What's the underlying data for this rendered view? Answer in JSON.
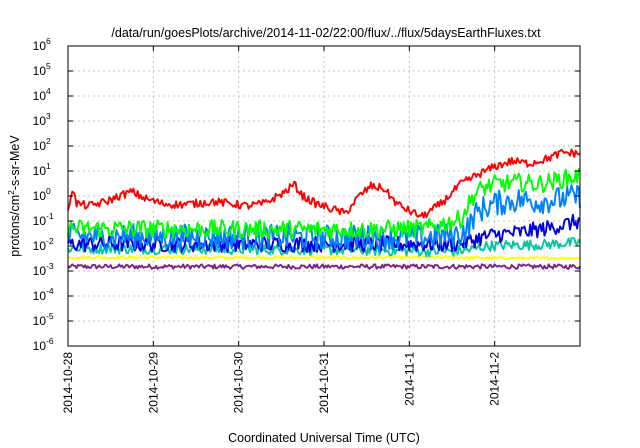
{
  "chart_data": {
    "type": "line",
    "title": "/data/run/goesPlots/archive/2014-11-02/22:00/flux/../flux/5daysEarthFluxes.txt",
    "xlabel": "Coordinated Universal Time (UTC)",
    "ylabel_parts": [
      "protons/cm",
      "2",
      "-s-sr-MeV"
    ],
    "yscale": "log",
    "ylim": [
      1e-06,
      1000000.0
    ],
    "xlim": [
      0,
      6
    ],
    "grid": true,
    "x_ticks": [
      {
        "x": 0,
        "label": "2014-10-28"
      },
      {
        "x": 1,
        "label": "2014-10-29"
      },
      {
        "x": 2,
        "label": "2014-10-30"
      },
      {
        "x": 3,
        "label": "2014-10-31"
      },
      {
        "x": 4,
        "label": "2014-11-1"
      },
      {
        "x": 5,
        "label": "2014-11-2"
      }
    ],
    "y_ticks": [
      {
        "exp": -6,
        "base": "10",
        "sup": "-6"
      },
      {
        "exp": -5,
        "base": "10",
        "sup": "-5"
      },
      {
        "exp": -4,
        "base": "10",
        "sup": "-4"
      },
      {
        "exp": -3,
        "base": "10",
        "sup": "-3"
      },
      {
        "exp": -2,
        "base": "10",
        "sup": "-2"
      },
      {
        "exp": -1,
        "base": "10",
        "sup": "-1"
      },
      {
        "exp": 0,
        "base": "10",
        "sup": "0"
      },
      {
        "exp": 1,
        "base": "10",
        "sup": "1"
      },
      {
        "exp": 2,
        "base": "10",
        "sup": "2"
      },
      {
        "exp": 3,
        "base": "10",
        "sup": "3"
      },
      {
        "exp": 4,
        "base": "10",
        "sup": "4"
      },
      {
        "exp": 5,
        "base": "10",
        "sup": "5"
      },
      {
        "exp": 6,
        "base": "10",
        "sup": "6"
      }
    ],
    "series": [
      {
        "color": "#ff0000",
        "noise": 0.07,
        "points": [
          [
            0,
            0.3
          ],
          [
            0.05,
            2.0
          ],
          [
            0.1,
            0.5
          ],
          [
            0.25,
            0.4
          ],
          [
            0.45,
            0.6
          ],
          [
            0.6,
            1.0
          ],
          [
            0.75,
            1.5
          ],
          [
            0.9,
            0.8
          ],
          [
            1.1,
            0.5
          ],
          [
            1.3,
            0.45
          ],
          [
            1.5,
            0.5
          ],
          [
            1.7,
            0.6
          ],
          [
            1.9,
            0.5
          ],
          [
            2.1,
            0.4
          ],
          [
            2.3,
            0.5
          ],
          [
            2.55,
            1.5
          ],
          [
            2.65,
            3.0
          ],
          [
            2.75,
            1.0
          ],
          [
            2.9,
            0.5
          ],
          [
            3.1,
            0.3
          ],
          [
            3.25,
            0.2
          ],
          [
            3.4,
            0.9
          ],
          [
            3.55,
            2.5
          ],
          [
            3.7,
            2.0
          ],
          [
            3.85,
            0.5
          ],
          [
            4.0,
            0.25
          ],
          [
            4.15,
            0.15
          ],
          [
            4.25,
            0.25
          ],
          [
            4.4,
            0.6
          ],
          [
            4.6,
            3.0
          ],
          [
            4.8,
            7.0
          ],
          [
            5.0,
            15
          ],
          [
            5.2,
            25
          ],
          [
            5.4,
            20
          ],
          [
            5.6,
            30
          ],
          [
            5.8,
            55
          ],
          [
            6.0,
            50
          ]
        ]
      },
      {
        "color": "#00ff00",
        "noise": 0.16,
        "points": [
          [
            0,
            0.05
          ],
          [
            3.5,
            0.045
          ],
          [
            4.2,
            0.05
          ],
          [
            4.6,
            0.12
          ],
          [
            4.75,
            1.0
          ],
          [
            4.85,
            2.0
          ],
          [
            5.0,
            3.0
          ],
          [
            5.3,
            3.5
          ],
          [
            5.5,
            3.0
          ],
          [
            5.7,
            4.0
          ],
          [
            6.0,
            6.5
          ]
        ]
      },
      {
        "color": "#0080ff",
        "noise": 0.22,
        "points": [
          [
            0,
            0.025
          ],
          [
            3.5,
            0.022
          ],
          [
            4.2,
            0.022
          ],
          [
            4.6,
            0.03
          ],
          [
            4.7,
            0.06
          ],
          [
            4.75,
            0.15
          ],
          [
            4.85,
            0.3
          ],
          [
            5.0,
            0.5
          ],
          [
            5.3,
            0.7
          ],
          [
            5.5,
            0.6
          ],
          [
            5.7,
            0.7
          ],
          [
            6.0,
            1.0
          ]
        ]
      },
      {
        "color": "#0000e0",
        "noise": 0.14,
        "points": [
          [
            0,
            0.012
          ],
          [
            3.5,
            0.012
          ],
          [
            4.5,
            0.012
          ],
          [
            4.7,
            0.015
          ],
          [
            4.8,
            0.02
          ],
          [
            5.0,
            0.028
          ],
          [
            5.3,
            0.035
          ],
          [
            5.6,
            0.05
          ],
          [
            5.8,
            0.07
          ],
          [
            6.0,
            0.1
          ]
        ]
      },
      {
        "color": "#00c8a0",
        "noise": 0.09,
        "points": [
          [
            0,
            0.008
          ],
          [
            3.0,
            0.007
          ],
          [
            4.5,
            0.006
          ],
          [
            4.7,
            0.007
          ],
          [
            4.9,
            0.01
          ],
          [
            5.2,
            0.011
          ],
          [
            5.5,
            0.011
          ],
          [
            6.0,
            0.014
          ]
        ]
      },
      {
        "color": "#ffff00",
        "noise": 0.02,
        "points": [
          [
            0,
            0.0035
          ],
          [
            3.0,
            0.0034
          ],
          [
            4.5,
            0.0035
          ],
          [
            5.0,
            0.0033
          ],
          [
            6.0,
            0.0033
          ]
        ]
      },
      {
        "color": "#802080",
        "noise": 0.04,
        "points": [
          [
            0,
            0.0015
          ],
          [
            3.0,
            0.0015
          ],
          [
            6.0,
            0.0015
          ]
        ]
      }
    ]
  }
}
